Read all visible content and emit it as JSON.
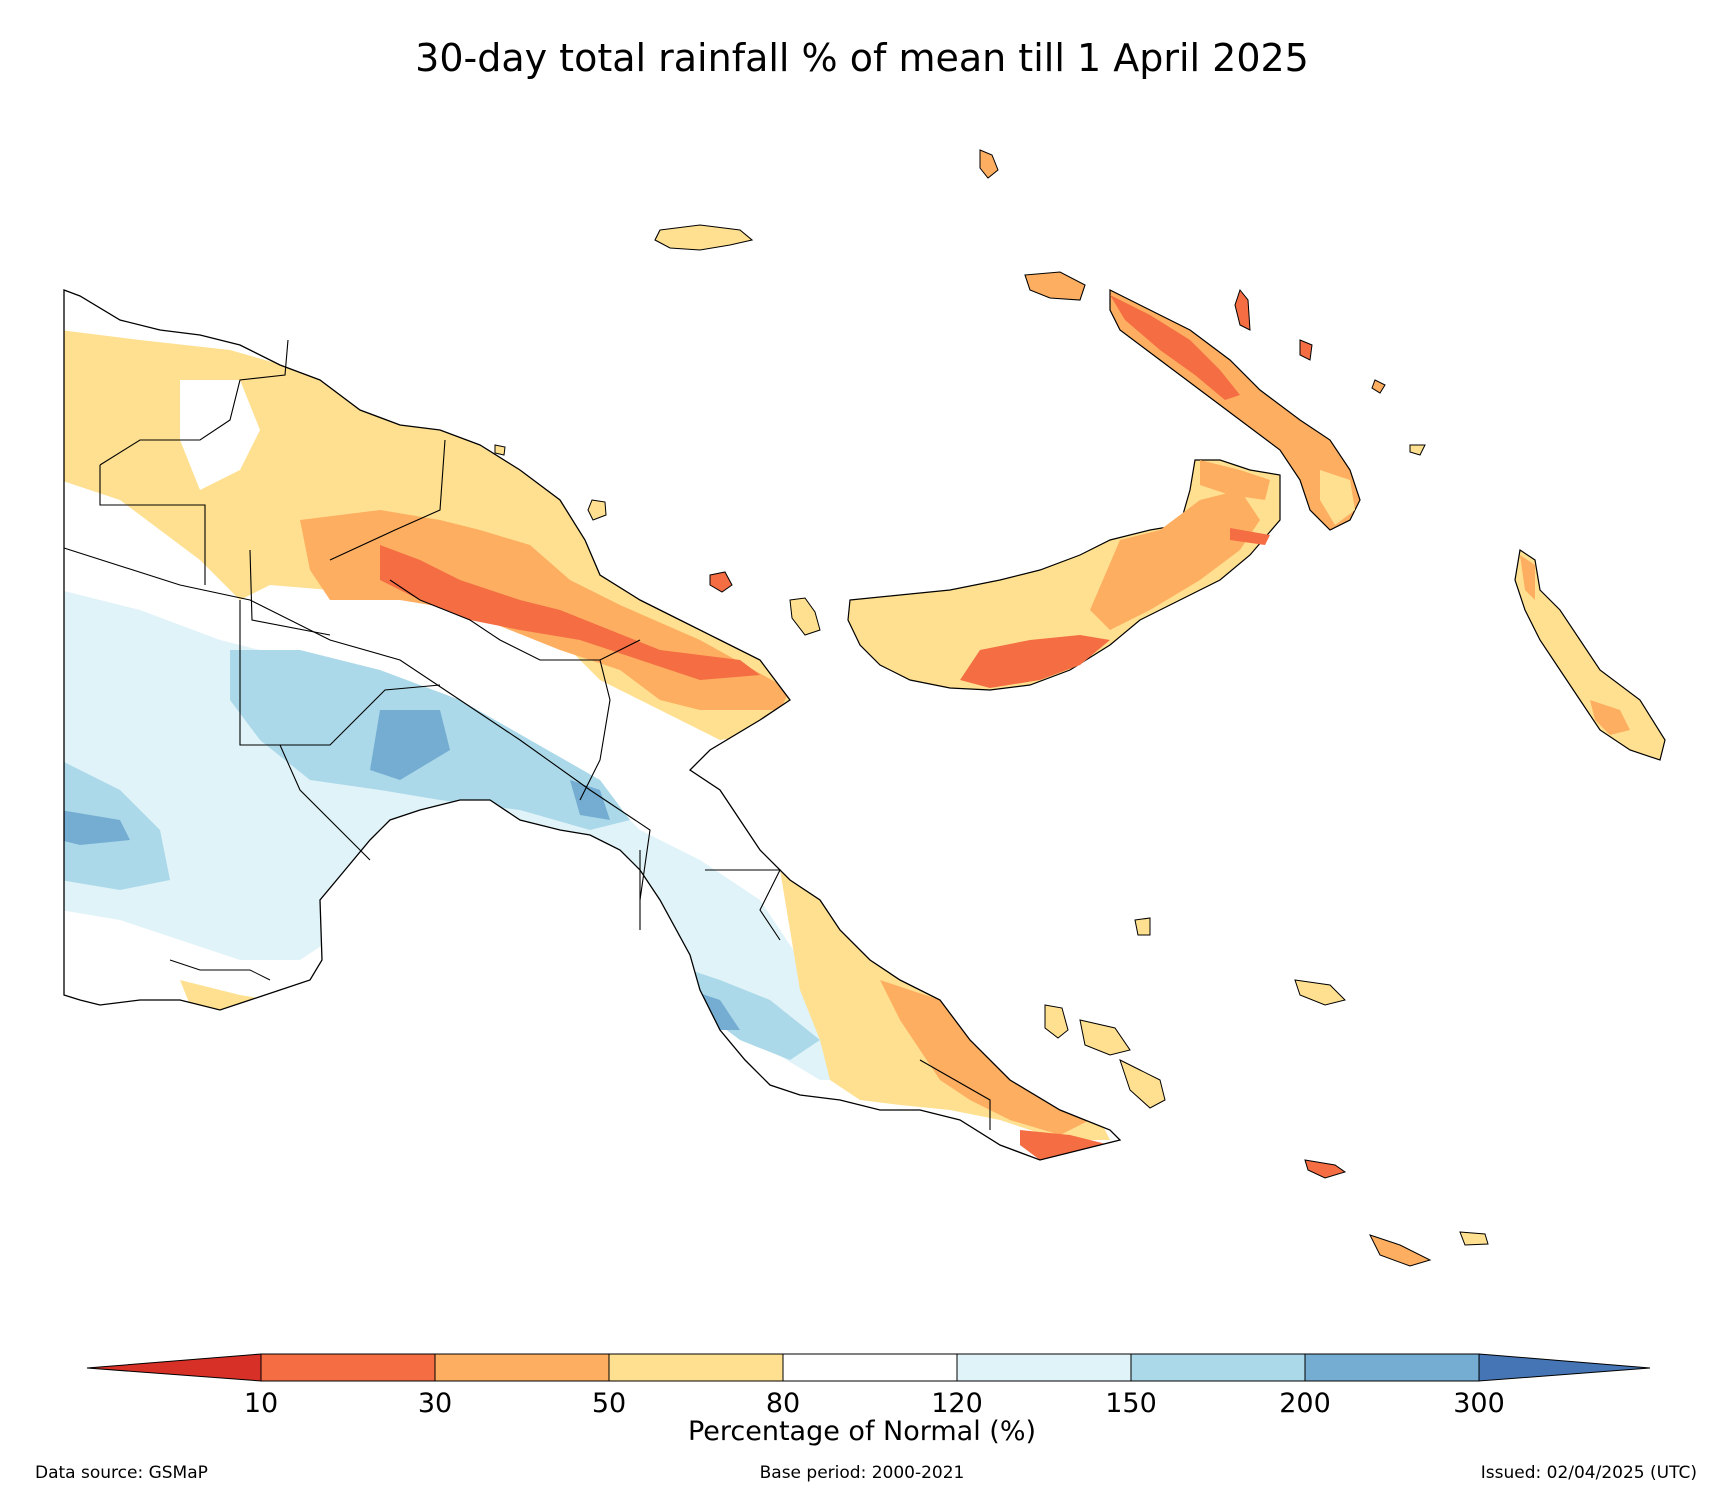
{
  "title": "30-day total rainfall % of mean till 1 April 2025",
  "colorbar": {
    "title": "Percentage of Normal (%)",
    "ticks": [
      "10",
      "30",
      "50",
      "80",
      "120",
      "150",
      "200",
      "300"
    ],
    "colors": {
      "below_10": "#d73027",
      "10_30": "#f46d43",
      "30_50": "#fdae61",
      "50_80": "#fee090",
      "80_120": "#ffffff",
      "120_150": "#e0f3f8",
      "150_200": "#abd9e9",
      "200_300": "#74add1",
      "above_300": "#4575b4"
    }
  },
  "footer": {
    "source": "Data source: GSMaP",
    "base_period": "Base period: 2000-2021",
    "issued": "Issued: 02/04/2025 (UTC)"
  }
}
